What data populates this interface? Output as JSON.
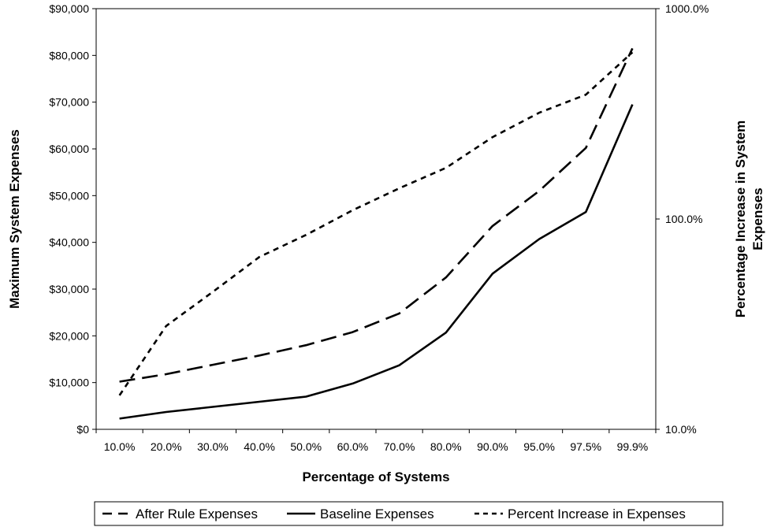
{
  "chart_data": {
    "type": "line",
    "title": "",
    "categories": [
      "10.0%",
      "20.0%",
      "30.0%",
      "40.0%",
      "50.0%",
      "60.0%",
      "70.0%",
      "80.0%",
      "90.0%",
      "95.0%",
      "97.5%",
      "99.9%"
    ],
    "xlabel": "Percentage of Systems",
    "ylabel": "Maximum System Expenses",
    "y2label": "Percentage Increase in System Expenses",
    "ylim": [
      0,
      90000
    ],
    "y_ticks": [
      "$0",
      "$10,000",
      "$20,000",
      "$30,000",
      "$40,000",
      "$50,000",
      "$60,000",
      "$70,000",
      "$80,000",
      "$90,000"
    ],
    "y2lim": [
      10,
      1000
    ],
    "y2_scale": "log",
    "y2_ticks": [
      "10.0%",
      "100.0%",
      "1000.0%"
    ],
    "grid": false,
    "legend_position": "bottom",
    "series": [
      {
        "name": "After Rule Expenses",
        "axis": "left",
        "dash": "long-dash",
        "values": [
          10200,
          11800,
          13800,
          15800,
          18000,
          20800,
          24800,
          32500,
          43500,
          51000,
          60200,
          81500
        ]
      },
      {
        "name": "Baseline Expenses",
        "axis": "left",
        "dash": "solid",
        "values": [
          2300,
          3700,
          4800,
          5900,
          7000,
          9800,
          13700,
          20700,
          33300,
          40700,
          46500,
          69500
        ]
      },
      {
        "name": "Percent Increase in Expenses",
        "axis": "right",
        "dash": "short-dash",
        "values": [
          14.5,
          31,
          45,
          66,
          84,
          110,
          140,
          175,
          245,
          320,
          390,
          620
        ]
      }
    ]
  }
}
